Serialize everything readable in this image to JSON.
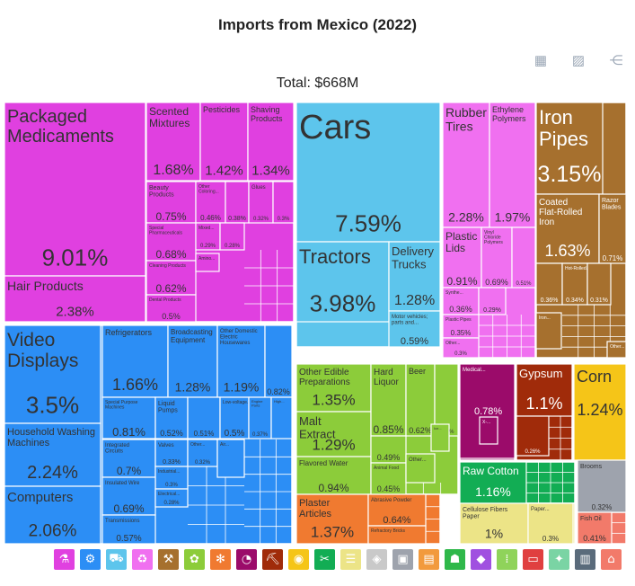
{
  "title": "Imports from Mexico (2022)",
  "total_label": "Total: $668M",
  "toolbar": [
    {
      "name": "table-icon",
      "glyph": "▦"
    },
    {
      "name": "image-icon",
      "glyph": "▨"
    },
    {
      "name": "share-icon",
      "glyph": "⋲"
    }
  ],
  "legend": [
    {
      "name": "chemical-products",
      "color": "#e040e0",
      "glyph": "⚗"
    },
    {
      "name": "machines",
      "color": "#2c8ef5",
      "glyph": "⚙"
    },
    {
      "name": "transportation",
      "color": "#5dc5ec",
      "glyph": "⛟"
    },
    {
      "name": "plastics-rubbers",
      "color": "#f070f0",
      "glyph": "♻"
    },
    {
      "name": "metals",
      "color": "#a6702e",
      "glyph": "⚒"
    },
    {
      "name": "vegetable-products",
      "color": "#8ccc3a",
      "glyph": "✿"
    },
    {
      "name": "foodstuffs",
      "color": "#f07a30",
      "glyph": "✻"
    },
    {
      "name": "instruments",
      "color": "#9b0b6a",
      "glyph": "◔"
    },
    {
      "name": "mineral-products",
      "color": "#a02b0a",
      "glyph": "⛏"
    },
    {
      "name": "animal-products",
      "color": "#f5c518",
      "glyph": "◉"
    },
    {
      "name": "textiles",
      "color": "#12ad54",
      "glyph": "✂"
    },
    {
      "name": "paper-goods",
      "color": "#ece487",
      "glyph": "☰"
    },
    {
      "name": "stone-glass",
      "color": "#c9c9c9",
      "glyph": "◈"
    },
    {
      "name": "miscellaneous",
      "color": "#9ea3ad",
      "glyph": "▣"
    },
    {
      "name": "arts-antiques",
      "color": "#f29a3d",
      "glyph": "▤"
    },
    {
      "name": "footwear",
      "color": "#2fb84a",
      "glyph": "☗"
    },
    {
      "name": "precious-metals",
      "color": "#a050e0",
      "glyph": "◆"
    },
    {
      "name": "weapons",
      "color": "#8fd35a",
      "glyph": "⁞"
    },
    {
      "name": "animal-hides",
      "color": "#e04040",
      "glyph": "▭"
    },
    {
      "name": "wood-products",
      "color": "#7ad4a4",
      "glyph": "✦"
    },
    {
      "name": "art",
      "color": "#5a6b7b",
      "glyph": "▥"
    },
    {
      "name": "animal-vegetable-bi-products",
      "color": "#f27a6a",
      "glyph": "⌂"
    }
  ],
  "chart_data": {
    "type": "treemap",
    "title": "Imports from Mexico (2022)",
    "total": "$668M",
    "unit": "percent of total",
    "items": [
      {
        "label": "Packaged Medicaments",
        "value": 9.01,
        "color": "#e040e0"
      },
      {
        "label": "Hair Products",
        "value": 2.38,
        "color": "#e040e0"
      },
      {
        "label": "Scented Mixtures",
        "value": 1.68,
        "color": "#e040e0"
      },
      {
        "label": "Pesticides",
        "value": 1.42,
        "color": "#e040e0"
      },
      {
        "label": "Shaving Products",
        "value": 1.34,
        "color": "#e040e0"
      },
      {
        "label": "Beauty Products",
        "value": 0.75,
        "color": "#e040e0"
      },
      {
        "label": "Other Coloring...",
        "value": 0.46,
        "color": "#e040e0"
      },
      {
        "label": "",
        "value": 0.38,
        "color": "#e040e0"
      },
      {
        "label": "Glues",
        "value": 0.32,
        "color": "#e040e0"
      },
      {
        "label": "",
        "value": 0.3,
        "color": "#e040e0"
      },
      {
        "label": "Special Pharmaceuticals",
        "value": 0.68,
        "color": "#e040e0"
      },
      {
        "label": "Mixed...",
        "value": 0.29,
        "color": "#e040e0"
      },
      {
        "label": "",
        "value": 0.28,
        "color": "#e040e0"
      },
      {
        "label": "Cleaning Products",
        "value": 0.62,
        "color": "#e040e0"
      },
      {
        "label": "Dental Products",
        "value": 0.5,
        "color": "#e040e0"
      },
      {
        "label": "Amino...",
        "value": null,
        "color": "#e040e0"
      },
      {
        "label": "Cars",
        "value": 7.59,
        "color": "#5dc5ec"
      },
      {
        "label": "Tractors",
        "value": 3.98,
        "color": "#5dc5ec"
      },
      {
        "label": "Delivery Trucks",
        "value": 1.28,
        "color": "#5dc5ec"
      },
      {
        "label": "Motor vehicles; parts and...",
        "value": 0.59,
        "color": "#5dc5ec"
      },
      {
        "label": "Rubber Tires",
        "value": 2.28,
        "color": "#f070f0"
      },
      {
        "label": "Ethylene Polymers",
        "value": 1.97,
        "color": "#f070f0"
      },
      {
        "label": "Plastic Lids",
        "value": 0.91,
        "color": "#f070f0"
      },
      {
        "label": "Vinyl Chloride Polymers",
        "value": 0.69,
        "color": "#f070f0"
      },
      {
        "label": "",
        "value": 0.51,
        "color": "#f070f0"
      },
      {
        "label": "Synthe...",
        "value": 0.36,
        "color": "#f070f0"
      },
      {
        "label": "",
        "value": 0.29,
        "color": "#f070f0"
      },
      {
        "label": "Plastic Pipes",
        "value": 0.35,
        "color": "#f070f0"
      },
      {
        "label": "Other...",
        "value": 0.3,
        "color": "#f070f0"
      },
      {
        "label": "Iron Pipes",
        "value": 3.15,
        "color": "#a6702e"
      },
      {
        "label": "Coated Flat-Rolled Iron",
        "value": 1.63,
        "color": "#a6702e"
      },
      {
        "label": "Razor Blades",
        "value": 0.71,
        "color": "#a6702e"
      },
      {
        "label": "",
        "value": 0.36,
        "color": "#a6702e"
      },
      {
        "label": "Hot-Rolled...",
        "value": 0.34,
        "color": "#a6702e"
      },
      {
        "label": "",
        "value": 0.31,
        "color": "#a6702e"
      },
      {
        "label": "Iron...",
        "value": null,
        "color": "#a6702e"
      },
      {
        "label": "Other...",
        "value": null,
        "color": "#a6702e"
      },
      {
        "label": "Video Displays",
        "value": 3.5,
        "color": "#2c8ef5"
      },
      {
        "label": "Household Washing Machines",
        "value": 2.24,
        "color": "#2c8ef5"
      },
      {
        "label": "Computers",
        "value": 2.06,
        "color": "#2c8ef5"
      },
      {
        "label": "Refrigerators",
        "value": 1.66,
        "color": "#2c8ef5"
      },
      {
        "label": "Broadcasting Equipment",
        "value": 1.28,
        "color": "#2c8ef5"
      },
      {
        "label": "Other Domestic Electric Housewares",
        "value": 1.19,
        "color": "#2c8ef5"
      },
      {
        "label": "",
        "value": 0.82,
        "color": "#2c8ef5"
      },
      {
        "label": "Special Purpose Machines",
        "value": 0.81,
        "color": "#2c8ef5"
      },
      {
        "label": "Liquid Pumps",
        "value": 0.52,
        "color": "#2c8ef5"
      },
      {
        "label": "",
        "value": 0.51,
        "color": "#2c8ef5"
      },
      {
        "label": "Low-voltage...",
        "value": 0.5,
        "color": "#2c8ef5"
      },
      {
        "label": "Engine Parts",
        "value": 0.37,
        "color": "#2c8ef5"
      },
      {
        "label": "High...",
        "value": null,
        "color": "#2c8ef5"
      },
      {
        "label": "Integrated Circuits",
        "value": 0.7,
        "color": "#2c8ef5"
      },
      {
        "label": "Valves",
        "value": 0.33,
        "color": "#2c8ef5"
      },
      {
        "label": "Other...",
        "value": 0.32,
        "color": "#2c8ef5"
      },
      {
        "label": "Air...",
        "value": null,
        "color": "#2c8ef5"
      },
      {
        "label": "Industrial...",
        "value": 0.3,
        "color": "#2c8ef5"
      },
      {
        "label": "Insulated Wire",
        "value": 0.69,
        "color": "#2c8ef5"
      },
      {
        "label": "Electrical...",
        "value": 0.28,
        "color": "#2c8ef5"
      },
      {
        "label": "Transmissions",
        "value": 0.57,
        "color": "#2c8ef5"
      },
      {
        "label": "Other Edible Preparations",
        "value": 1.35,
        "color": "#8ccc3a"
      },
      {
        "label": "Malt Extract",
        "value": 1.29,
        "color": "#8ccc3a"
      },
      {
        "label": "Flavored Water",
        "value": 0.94,
        "color": "#8ccc3a"
      },
      {
        "label": "Hard Liquor",
        "value": 0.85,
        "color": "#8ccc3a"
      },
      {
        "label": "Beer",
        "value": 0.62,
        "color": "#8ccc3a"
      },
      {
        "label": "",
        "value": 0.54,
        "color": "#8ccc3a"
      },
      {
        "label": "",
        "value": 0.49,
        "color": "#8ccc3a"
      },
      {
        "label": "Animal Food",
        "value": 0.45,
        "color": "#8ccc3a"
      },
      {
        "label": "Other...",
        "value": null,
        "color": "#8ccc3a"
      },
      {
        "label": "Ice...",
        "value": null,
        "color": "#8ccc3a"
      },
      {
        "label": "Plaster Articles",
        "value": 1.37,
        "color": "#f07a30"
      },
      {
        "label": "Abrasive Powder",
        "value": 0.64,
        "color": "#f07a30"
      },
      {
        "label": "Refractory Bricks",
        "value": null,
        "color": "#f07a30"
      },
      {
        "label": "Medical...",
        "value": 0.78,
        "color": "#9b0b6a"
      },
      {
        "label": "X-...",
        "value": null,
        "color": "#9b0b6a"
      },
      {
        "label": "Gypsum",
        "value": 1.1,
        "color": "#a02b0a"
      },
      {
        "label": "",
        "value": 0.26,
        "color": "#a02b0a"
      },
      {
        "label": "Corn",
        "value": 1.24,
        "color": "#f5c518"
      },
      {
        "label": "Raw Cotton",
        "value": 1.16,
        "color": "#12ad54"
      },
      {
        "label": "Cellulose Fibers Paper",
        "value": 1,
        "color": "#ece487"
      },
      {
        "label": "Paper...",
        "value": 0.3,
        "color": "#ece487"
      },
      {
        "label": "Brooms",
        "value": 0.32,
        "color": "#9ea3ad"
      },
      {
        "label": "Fish Oil",
        "value": 0.41,
        "color": "#f27a6a"
      }
    ]
  }
}
